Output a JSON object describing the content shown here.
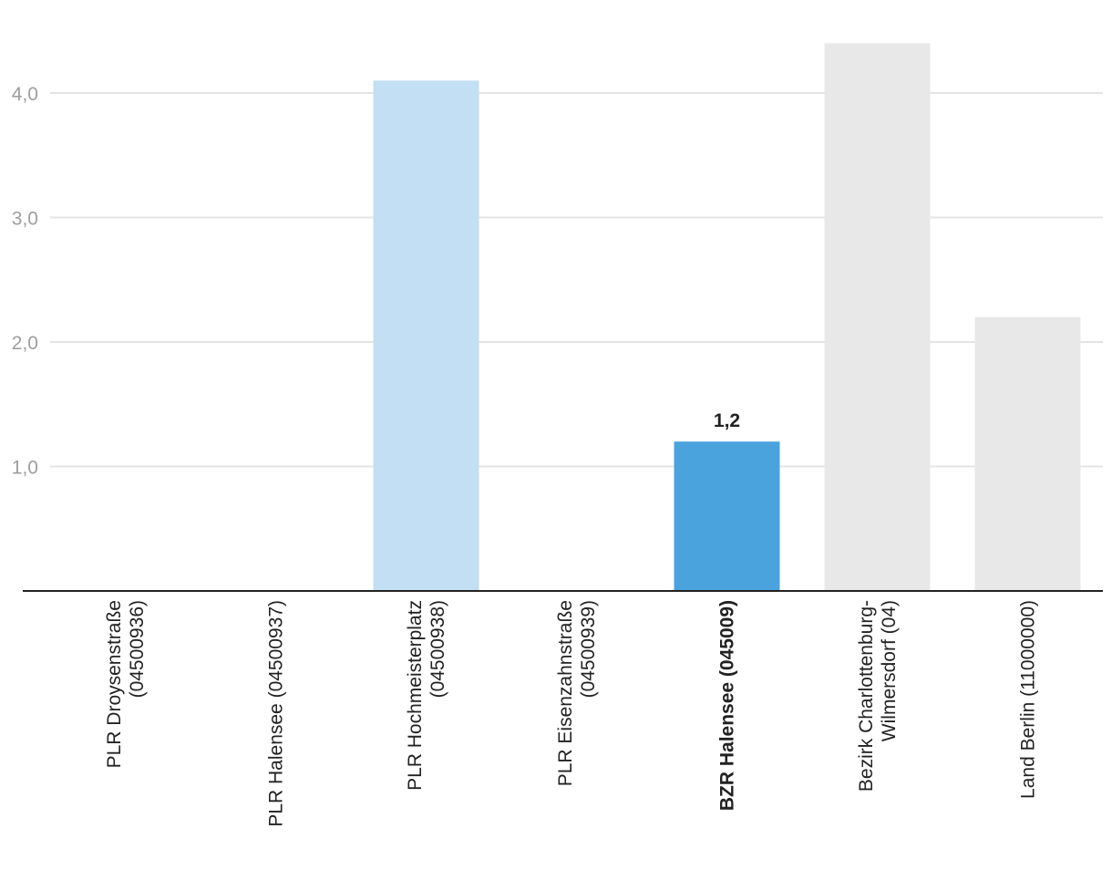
{
  "chart_data": {
    "type": "bar",
    "title": "",
    "xlabel": "",
    "ylabel": "",
    "ylim": [
      0,
      4.5
    ],
    "yticks": [
      1.0,
      2.0,
      3.0,
      4.0
    ],
    "ytick_labels": [
      "1,0",
      "2,0",
      "3,0",
      "4,0"
    ],
    "grid": true,
    "categories": [
      {
        "lines": [
          "PLR Droysenstraße",
          "(04500936)"
        ],
        "bold": false
      },
      {
        "lines": [
          "PLR Halensee (04500937)"
        ],
        "bold": false
      },
      {
        "lines": [
          "PLR Hochmeisterplatz",
          "(04500938)"
        ],
        "bold": false
      },
      {
        "lines": [
          "PLR Eisenzahnstraße",
          "(04500939)"
        ],
        "bold": false
      },
      {
        "lines": [
          "BZR Halensee (045009)"
        ],
        "bold": true
      },
      {
        "lines": [
          "Bezirk Charlottenburg-",
          "Wilmersdorf (04)"
        ],
        "bold": false
      },
      {
        "lines": [
          "Land Berlin (11000000)"
        ],
        "bold": false
      }
    ],
    "values": [
      null,
      null,
      4.1,
      null,
      1.2,
      4.4,
      2.2
    ],
    "colors": [
      "#c2dff3",
      "#c2dff3",
      "#c2dff3",
      "#c2dff3",
      "#4ba3de",
      "#e8e8e8",
      "#e8e8e8"
    ],
    "data_labels": [
      "",
      "",
      "",
      "",
      "1,2",
      "",
      ""
    ]
  }
}
